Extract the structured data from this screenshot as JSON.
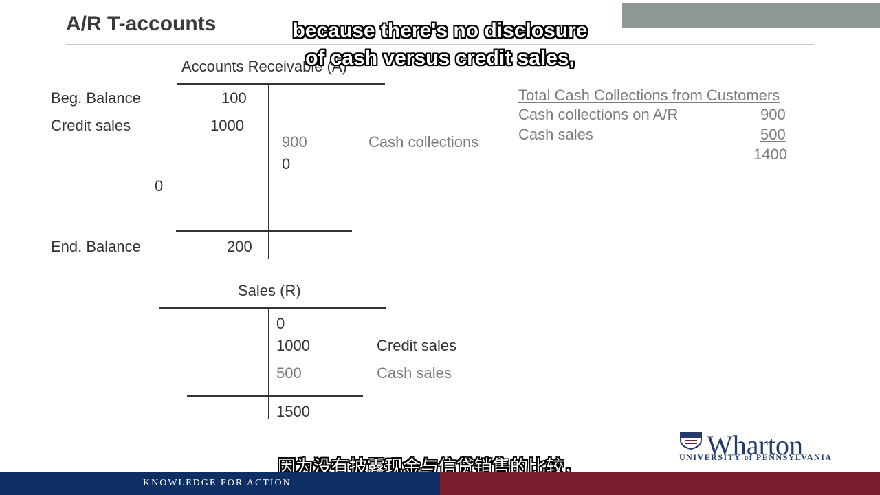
{
  "slide": {
    "title": "A/R T-accounts"
  },
  "subtitles": {
    "english_line1": "because there's no disclosure",
    "english_line2": "of cash versus credit sales,",
    "chinese": "因为没有披露现金与信贷销售的比较，"
  },
  "accounts_receivable": {
    "heading": "Accounts Receivable (A)",
    "beg_balance_label": "Beg. Balance",
    "beg_balance_value": "100",
    "credit_sales_label": "Credit sales",
    "credit_sales_value": "1000",
    "cash_collections_value": "900",
    "cash_collections_label": "Cash collections",
    "right_zero": "0",
    "left_zero": "0",
    "end_balance_label": "End. Balance",
    "end_balance_value": "200"
  },
  "sales_account": {
    "heading": "Sales (R)",
    "zero": "0",
    "credit_sales_value": "1000",
    "credit_sales_label": "Credit sales",
    "cash_sales_value": "500",
    "cash_sales_label": "Cash sales",
    "total": "1500"
  },
  "collections_summary": {
    "heading": "Total Cash Collections from Customers",
    "rows": [
      {
        "label": "Cash collections on A/R",
        "value": "900"
      },
      {
        "label": "Cash sales",
        "value": "500"
      }
    ],
    "total": "1400"
  },
  "branding": {
    "logo_name": "Wharton",
    "logo_sub": "UNIVERSITY of PENNSYLVANIA",
    "footer_tagline": "KNOWLEDGE FOR ACTION",
    "colors": {
      "navy": "#0d2f63",
      "crimson": "#7a1f2e",
      "top_bar": "#8c9a93"
    }
  }
}
